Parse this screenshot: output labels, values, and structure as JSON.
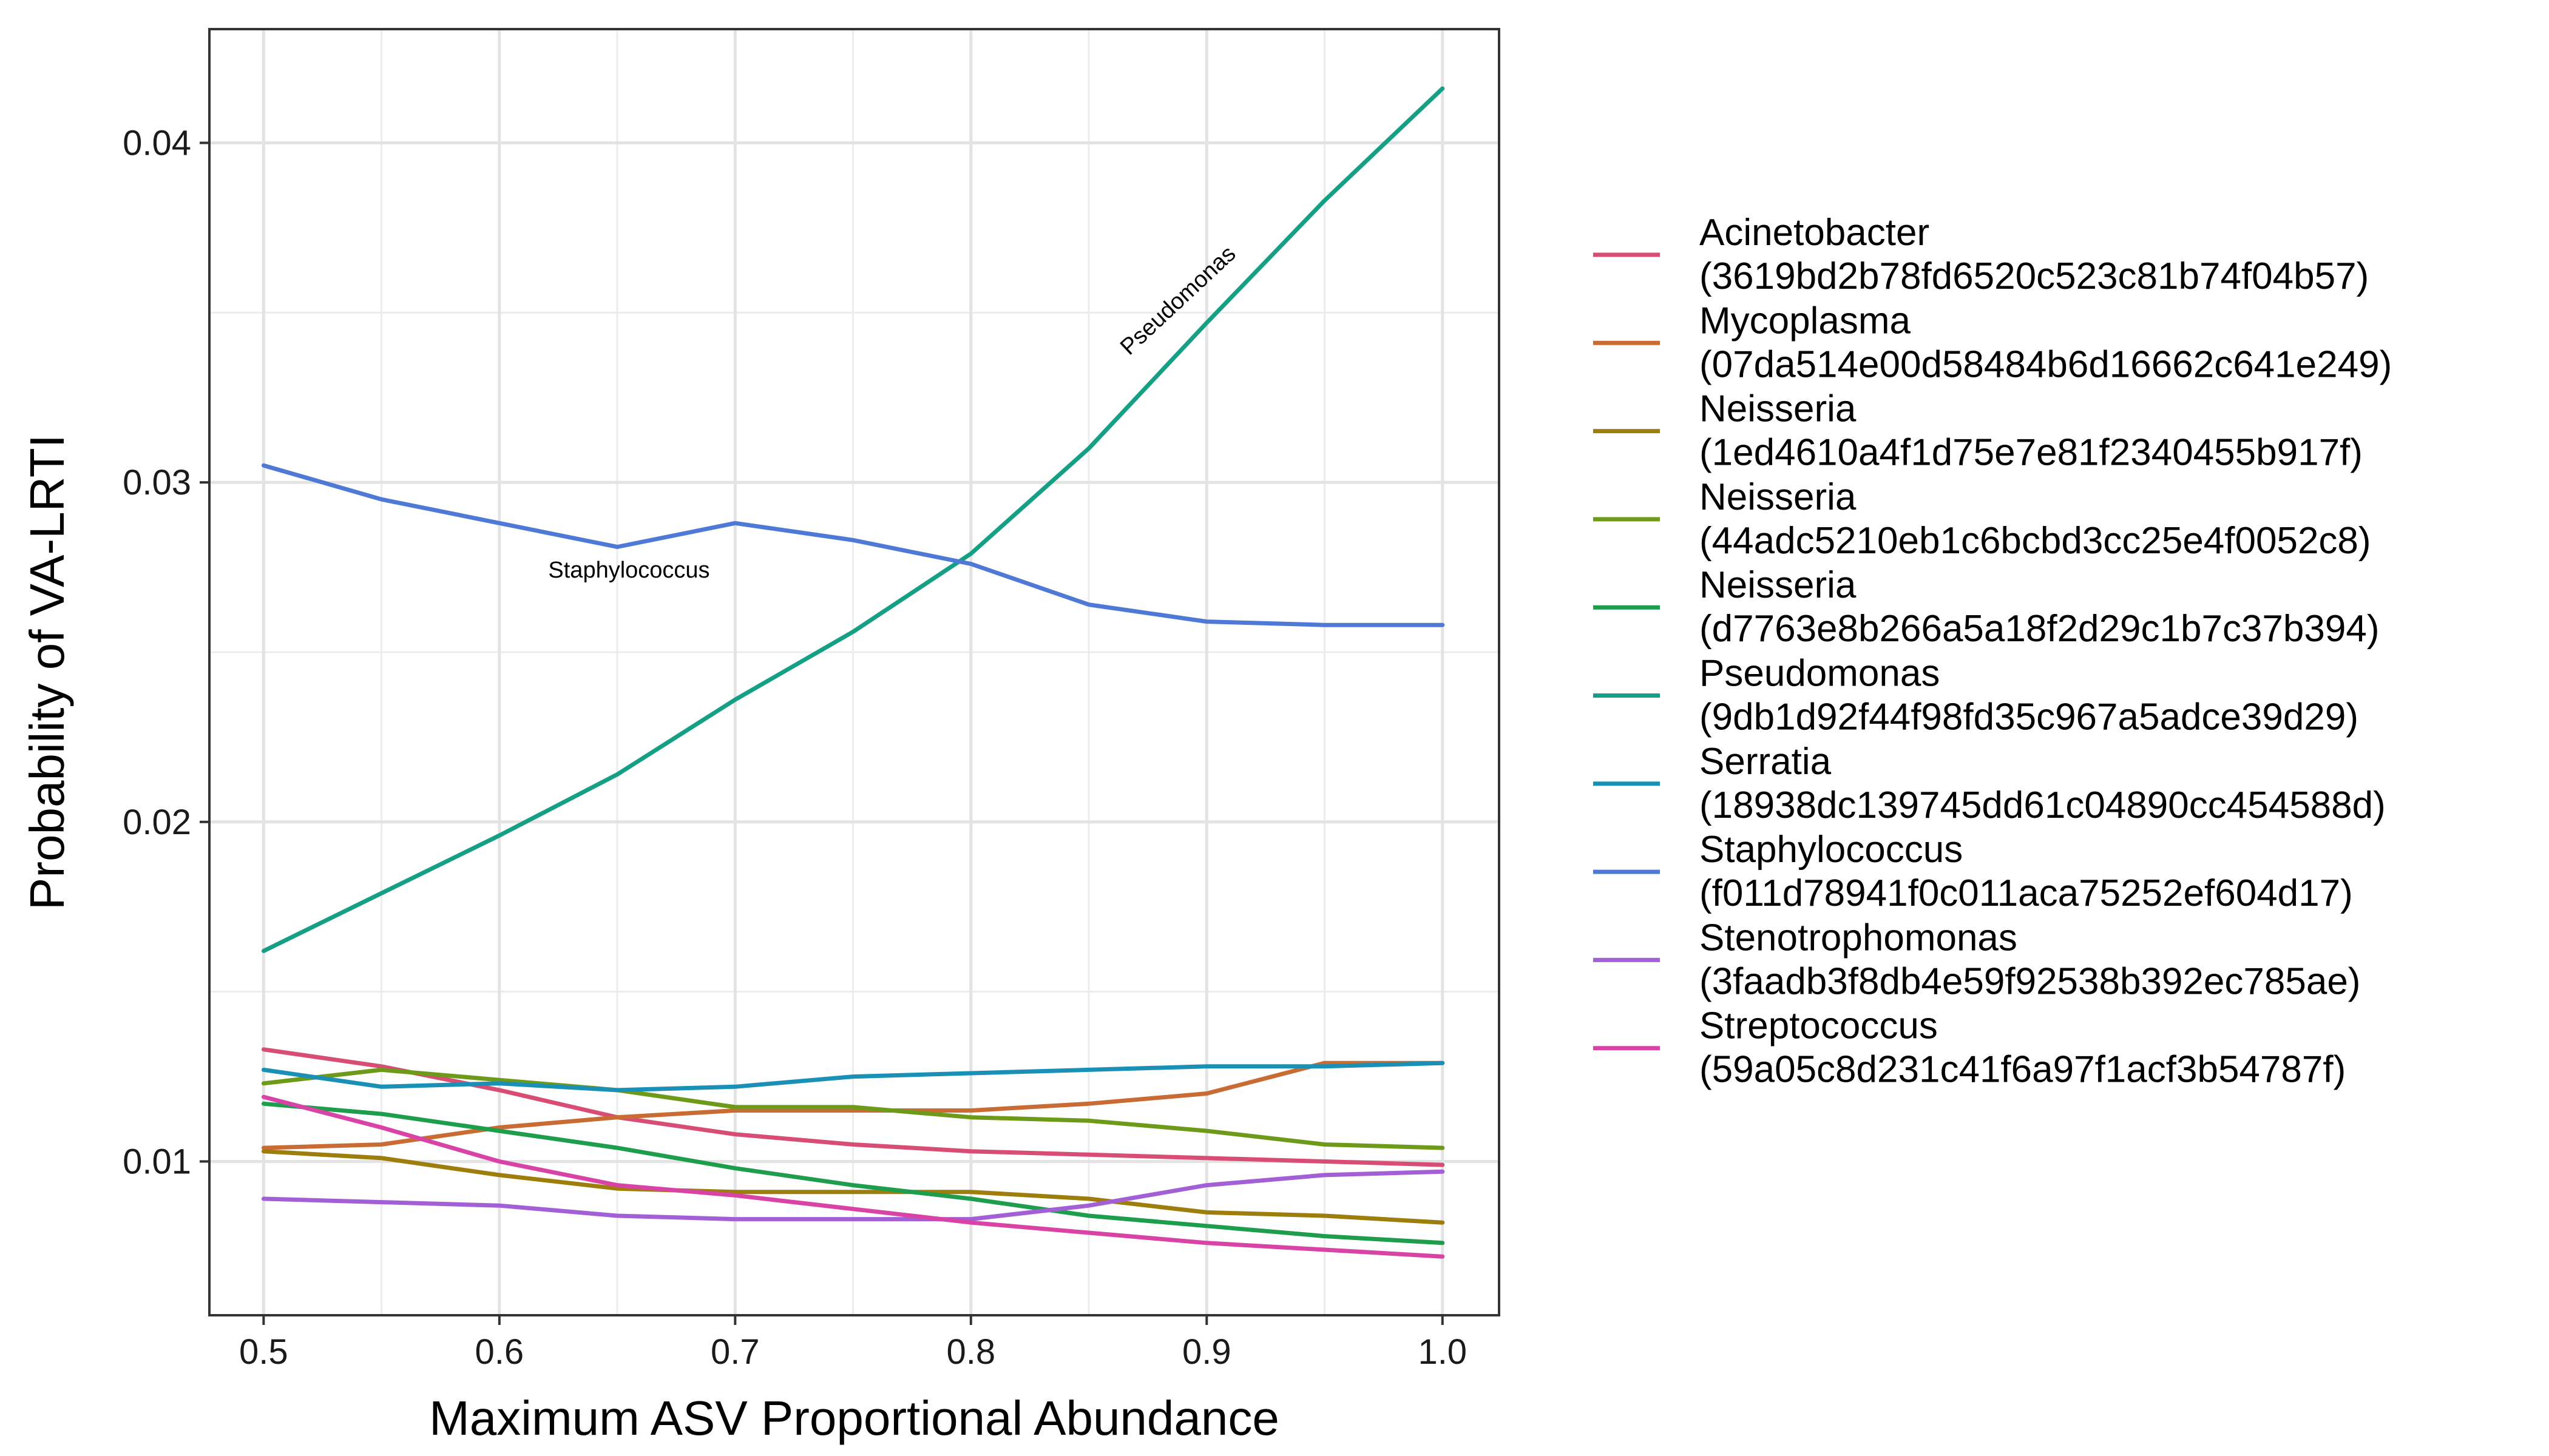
{
  "chart_data": {
    "type": "line",
    "title": "",
    "xlabel": "Maximum ASV Proportional Abundance",
    "ylabel": "Probability of VA-LRTI",
    "xlim": [
      0.477,
      1.024
    ],
    "ylim": [
      0.00547,
      0.04335
    ],
    "x_ticks": [
      0.5,
      0.6,
      0.7,
      0.8,
      0.9,
      1.0
    ],
    "x_tick_labels": [
      "0.5",
      "0.6",
      "0.7",
      "0.8",
      "0.9",
      "1.0"
    ],
    "y_ticks": [
      0.01,
      0.02,
      0.03,
      0.04
    ],
    "y_tick_labels": [
      "0.01",
      "0.02",
      "0.03",
      "0.04"
    ],
    "grid": true,
    "legend_position": "right",
    "x": [
      0.5,
      0.55,
      0.6,
      0.65,
      0.7,
      0.75,
      0.8,
      0.85,
      0.9,
      0.95,
      1.0
    ],
    "series": [
      {
        "name": "Acinetobacter",
        "name2": "(3619bd2b78fd6520c523c81b74f04b57)",
        "color": "#D84D75",
        "values": [
          0.0133,
          0.0128,
          0.0121,
          0.0113,
          0.0108,
          0.0105,
          0.0103,
          0.0102,
          0.0101,
          0.01,
          0.0099
        ]
      },
      {
        "name": "Mycoplasma",
        "name2": "(07da514e00d58484b6d16662c641e249)",
        "color": "#C96C34",
        "values": [
          0.0104,
          0.0105,
          0.011,
          0.0113,
          0.0115,
          0.0115,
          0.0115,
          0.0117,
          0.012,
          0.0129,
          0.0129
        ]
      },
      {
        "name": "Neisseria",
        "name2": "(1ed4610a4f1d75e7e81f2340455b917f)",
        "color": "#9D7E0C",
        "values": [
          0.0103,
          0.0101,
          0.0096,
          0.0092,
          0.0091,
          0.0091,
          0.0091,
          0.0089,
          0.0085,
          0.0084,
          0.0082
        ]
      },
      {
        "name": "Neisseria",
        "name2": "(44adc5210eb1c6bcbd3cc25e4f0052c8)",
        "color": "#6E9A1A",
        "values": [
          0.0123,
          0.0127,
          0.0124,
          0.0121,
          0.0116,
          0.0116,
          0.0113,
          0.0112,
          0.0109,
          0.0105,
          0.0104
        ]
      },
      {
        "name": "Neisseria",
        "name2": "(d7763e8b266a5a18f2d29c1b7c37b394)",
        "color": "#1E9E4D",
        "values": [
          0.0117,
          0.0114,
          0.0109,
          0.0104,
          0.0098,
          0.0093,
          0.0089,
          0.0084,
          0.0081,
          0.0078,
          0.0076
        ]
      },
      {
        "name": "Pseudomonas",
        "name2": "(9db1d92f44f98fd35c967a5adce39d29)",
        "color": "#15A085",
        "values": [
          0.0162,
          0.0179,
          0.0196,
          0.0214,
          0.0236,
          0.0256,
          0.0279,
          0.031,
          0.0347,
          0.0383,
          0.0416
        ]
      },
      {
        "name": "Serratia",
        "name2": "(18938dc139745dd61c04890cc454588d)",
        "color": "#1A90B6",
        "values": [
          0.0127,
          0.0122,
          0.0123,
          0.0121,
          0.0122,
          0.0125,
          0.0126,
          0.0127,
          0.0128,
          0.0128,
          0.0129
        ]
      },
      {
        "name": "Staphylococcus",
        "name2": "(f011d78941f0c011aca75252ef604d17)",
        "color": "#4E79D6",
        "values": [
          0.0305,
          0.0295,
          0.0288,
          0.0281,
          0.0288,
          0.0283,
          0.0276,
          0.0264,
          0.0259,
          0.0258,
          0.0258
        ]
      },
      {
        "name": "Stenotrophomonas",
        "name2": "(3faadb3f8db4e59f92538b392ec785ae)",
        "color": "#A25FD6",
        "values": [
          0.0089,
          0.0088,
          0.0087,
          0.0084,
          0.0083,
          0.0083,
          0.0083,
          0.0087,
          0.0093,
          0.0096,
          0.0097
        ]
      },
      {
        "name": "Streptococcus",
        "name2": "(59a05c8d231c41f6a97f1acf3b54787f)",
        "color": "#D943A6",
        "values": [
          0.0119,
          0.011,
          0.01,
          0.0093,
          0.009,
          0.0086,
          0.0082,
          0.0079,
          0.0076,
          0.0074,
          0.0072
        ]
      }
    ],
    "annotations": [
      {
        "text": "Pseudomonas",
        "x": 0.89,
        "y": 0.0352,
        "angle_deg": -43
      },
      {
        "text": "Staphylococcus",
        "x": 0.655,
        "y": 0.0272,
        "angle_deg": 0
      }
    ]
  }
}
